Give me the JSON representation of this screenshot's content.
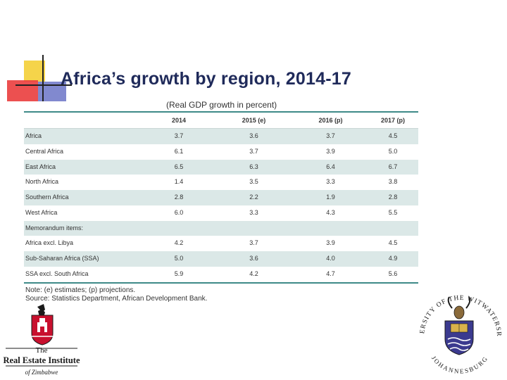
{
  "slide": {
    "title": "Africa’s growth by region, 2014-17"
  },
  "table": {
    "subtitle": "(Real GDP growth in percent)",
    "columns": [
      "",
      "2014",
      "2015 (e)",
      "2016 (p)",
      "2017 (p)"
    ],
    "rows": [
      {
        "label": "Africa",
        "values": [
          "3.7",
          "3.6",
          "3.7",
          "4.5"
        ]
      },
      {
        "label": "Central Africa",
        "values": [
          "6.1",
          "3.7",
          "3.9",
          "5.0"
        ]
      },
      {
        "label": "East Africa",
        "values": [
          "6.5",
          "6.3",
          "6.4",
          "6.7"
        ]
      },
      {
        "label": "North Africa",
        "values": [
          "1.4",
          "3.5",
          "3.3",
          "3.8"
        ]
      },
      {
        "label": "Southern Africa",
        "values": [
          "2.8",
          "2.2",
          "1.9",
          "2.8"
        ]
      },
      {
        "label": "West Africa",
        "values": [
          "6.0",
          "3.3",
          "4.3",
          "5.5"
        ]
      },
      {
        "label": "Memorandum items:",
        "values": [
          "",
          "",
          "",
          ""
        ]
      },
      {
        "label": "Africa excl. Libya",
        "values": [
          "4.2",
          "3.7",
          "3.9",
          "4.5"
        ]
      },
      {
        "label": "Sub-Saharan Africa (SSA)",
        "values": [
          "5.0",
          "3.6",
          "4.0",
          "4.9"
        ]
      },
      {
        "label": "SSA excl. South Africa",
        "values": [
          "5.9",
          "4.2",
          "4.7",
          "5.6"
        ]
      }
    ],
    "notes": [
      "Note: (e) estimates; (p) projections.",
      "Source: Statistics Department, African Development Bank."
    ]
  },
  "logos": {
    "left": {
      "line1": "The",
      "line2": "Real Estate Institute",
      "line3": "of Zimbabwe",
      "colors": {
        "shield": "#c8102e",
        "ink": "#1a1a1a"
      }
    },
    "right": {
      "arc_top": "UNIVERSITY OF THE WITWATERSRAND",
      "arc_bottom": "JOHANNESBURG",
      "colors": {
        "shield": "#3b3a8f",
        "gold": "#d8b24a",
        "ink": "#1a1a1a"
      }
    }
  }
}
